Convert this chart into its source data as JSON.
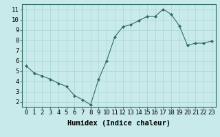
{
  "x": [
    0,
    1,
    2,
    3,
    4,
    5,
    6,
    7,
    8,
    9,
    10,
    11,
    12,
    13,
    14,
    15,
    16,
    17,
    18,
    19,
    20,
    21,
    22,
    23
  ],
  "y": [
    5.5,
    4.8,
    4.5,
    4.2,
    3.8,
    3.5,
    2.6,
    2.2,
    1.7,
    4.2,
    6.0,
    8.3,
    9.3,
    9.5,
    9.9,
    10.3,
    10.3,
    11.0,
    10.5,
    9.4,
    7.5,
    7.7,
    7.7,
    7.9
  ],
  "line_color": "#2e6b5e",
  "marker_color": "#2e6b5e",
  "bg_color": "#c8eaea",
  "grid_color": "#b0d8d8",
  "xlabel": "Humidex (Indice chaleur)",
  "xlabel_fontsize": 7.5,
  "tick_fontsize": 6.5,
  "xlim": [
    -0.5,
    23.5
  ],
  "ylim": [
    1.5,
    11.5
  ],
  "yticks": [
    2,
    3,
    4,
    5,
    6,
    7,
    8,
    9,
    10,
    11
  ],
  "xticks": [
    0,
    1,
    2,
    3,
    4,
    5,
    6,
    7,
    8,
    9,
    10,
    11,
    12,
    13,
    14,
    15,
    16,
    17,
    18,
    19,
    20,
    21,
    22,
    23
  ],
  "xtick_labels": [
    "0",
    "1",
    "2",
    "3",
    "4",
    "5",
    "6",
    "7",
    "8",
    "9",
    "10",
    "11",
    "12",
    "13",
    "14",
    "15",
    "16",
    "17",
    "18",
    "19",
    "20",
    "21",
    "22",
    "23"
  ]
}
